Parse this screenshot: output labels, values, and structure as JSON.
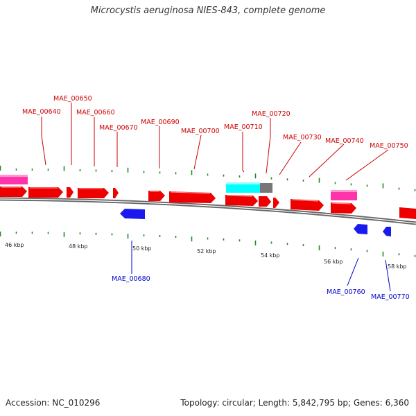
{
  "title": "Microcystis aeruginosa NIES-843, complete genome",
  "footer": {
    "accession": "Accession: NC_010296",
    "summary": "Topology: circular; Length: 5,842,795 bp; Genes: 6,360"
  },
  "colors": {
    "forward_gene": "#ff0000",
    "reverse_gene": "#0000ff",
    "forward_label": "#cc0000",
    "reverse_label": "#0000cc",
    "trna": "#ff33aa",
    "cyan_feature": "#00ffff",
    "gray_feature": "#777777",
    "tick": "#228822",
    "backbone": "#777777"
  },
  "axis": {
    "kbp_labels": [
      "46 kbp",
      "48 kbp",
      "50 kbp",
      "52 kbp",
      "54 kbp",
      "56 kbp",
      "58 kbp"
    ]
  },
  "forward_labels": [
    "MAE_00640",
    "MAE_00650",
    "MAE_00660",
    "MAE_00670",
    "MAE_00690",
    "MAE_00700",
    "MAE_00710",
    "MAE_00720",
    "MAE_00730",
    "MAE_00740",
    "MAE_00750"
  ],
  "reverse_labels": [
    "MAE_00680",
    "MAE_00760",
    "MAE_00770"
  ]
}
